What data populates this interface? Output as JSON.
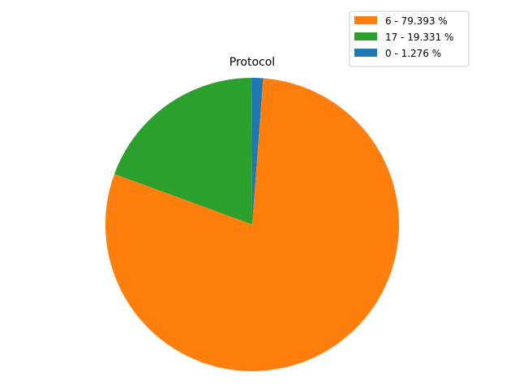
{
  "chart_data": {
    "type": "pie",
    "title": "Protocol",
    "slices": [
      {
        "label": "6 - 79.393 %",
        "value": 79.393,
        "color": "#ff7f0e"
      },
      {
        "label": "17 - 19.331 %",
        "value": 19.331,
        "color": "#2ca02c"
      },
      {
        "label": "0 - 1.276 %",
        "value": 1.276,
        "color": "#1f77b4"
      }
    ],
    "legend_position": "upper-right"
  }
}
